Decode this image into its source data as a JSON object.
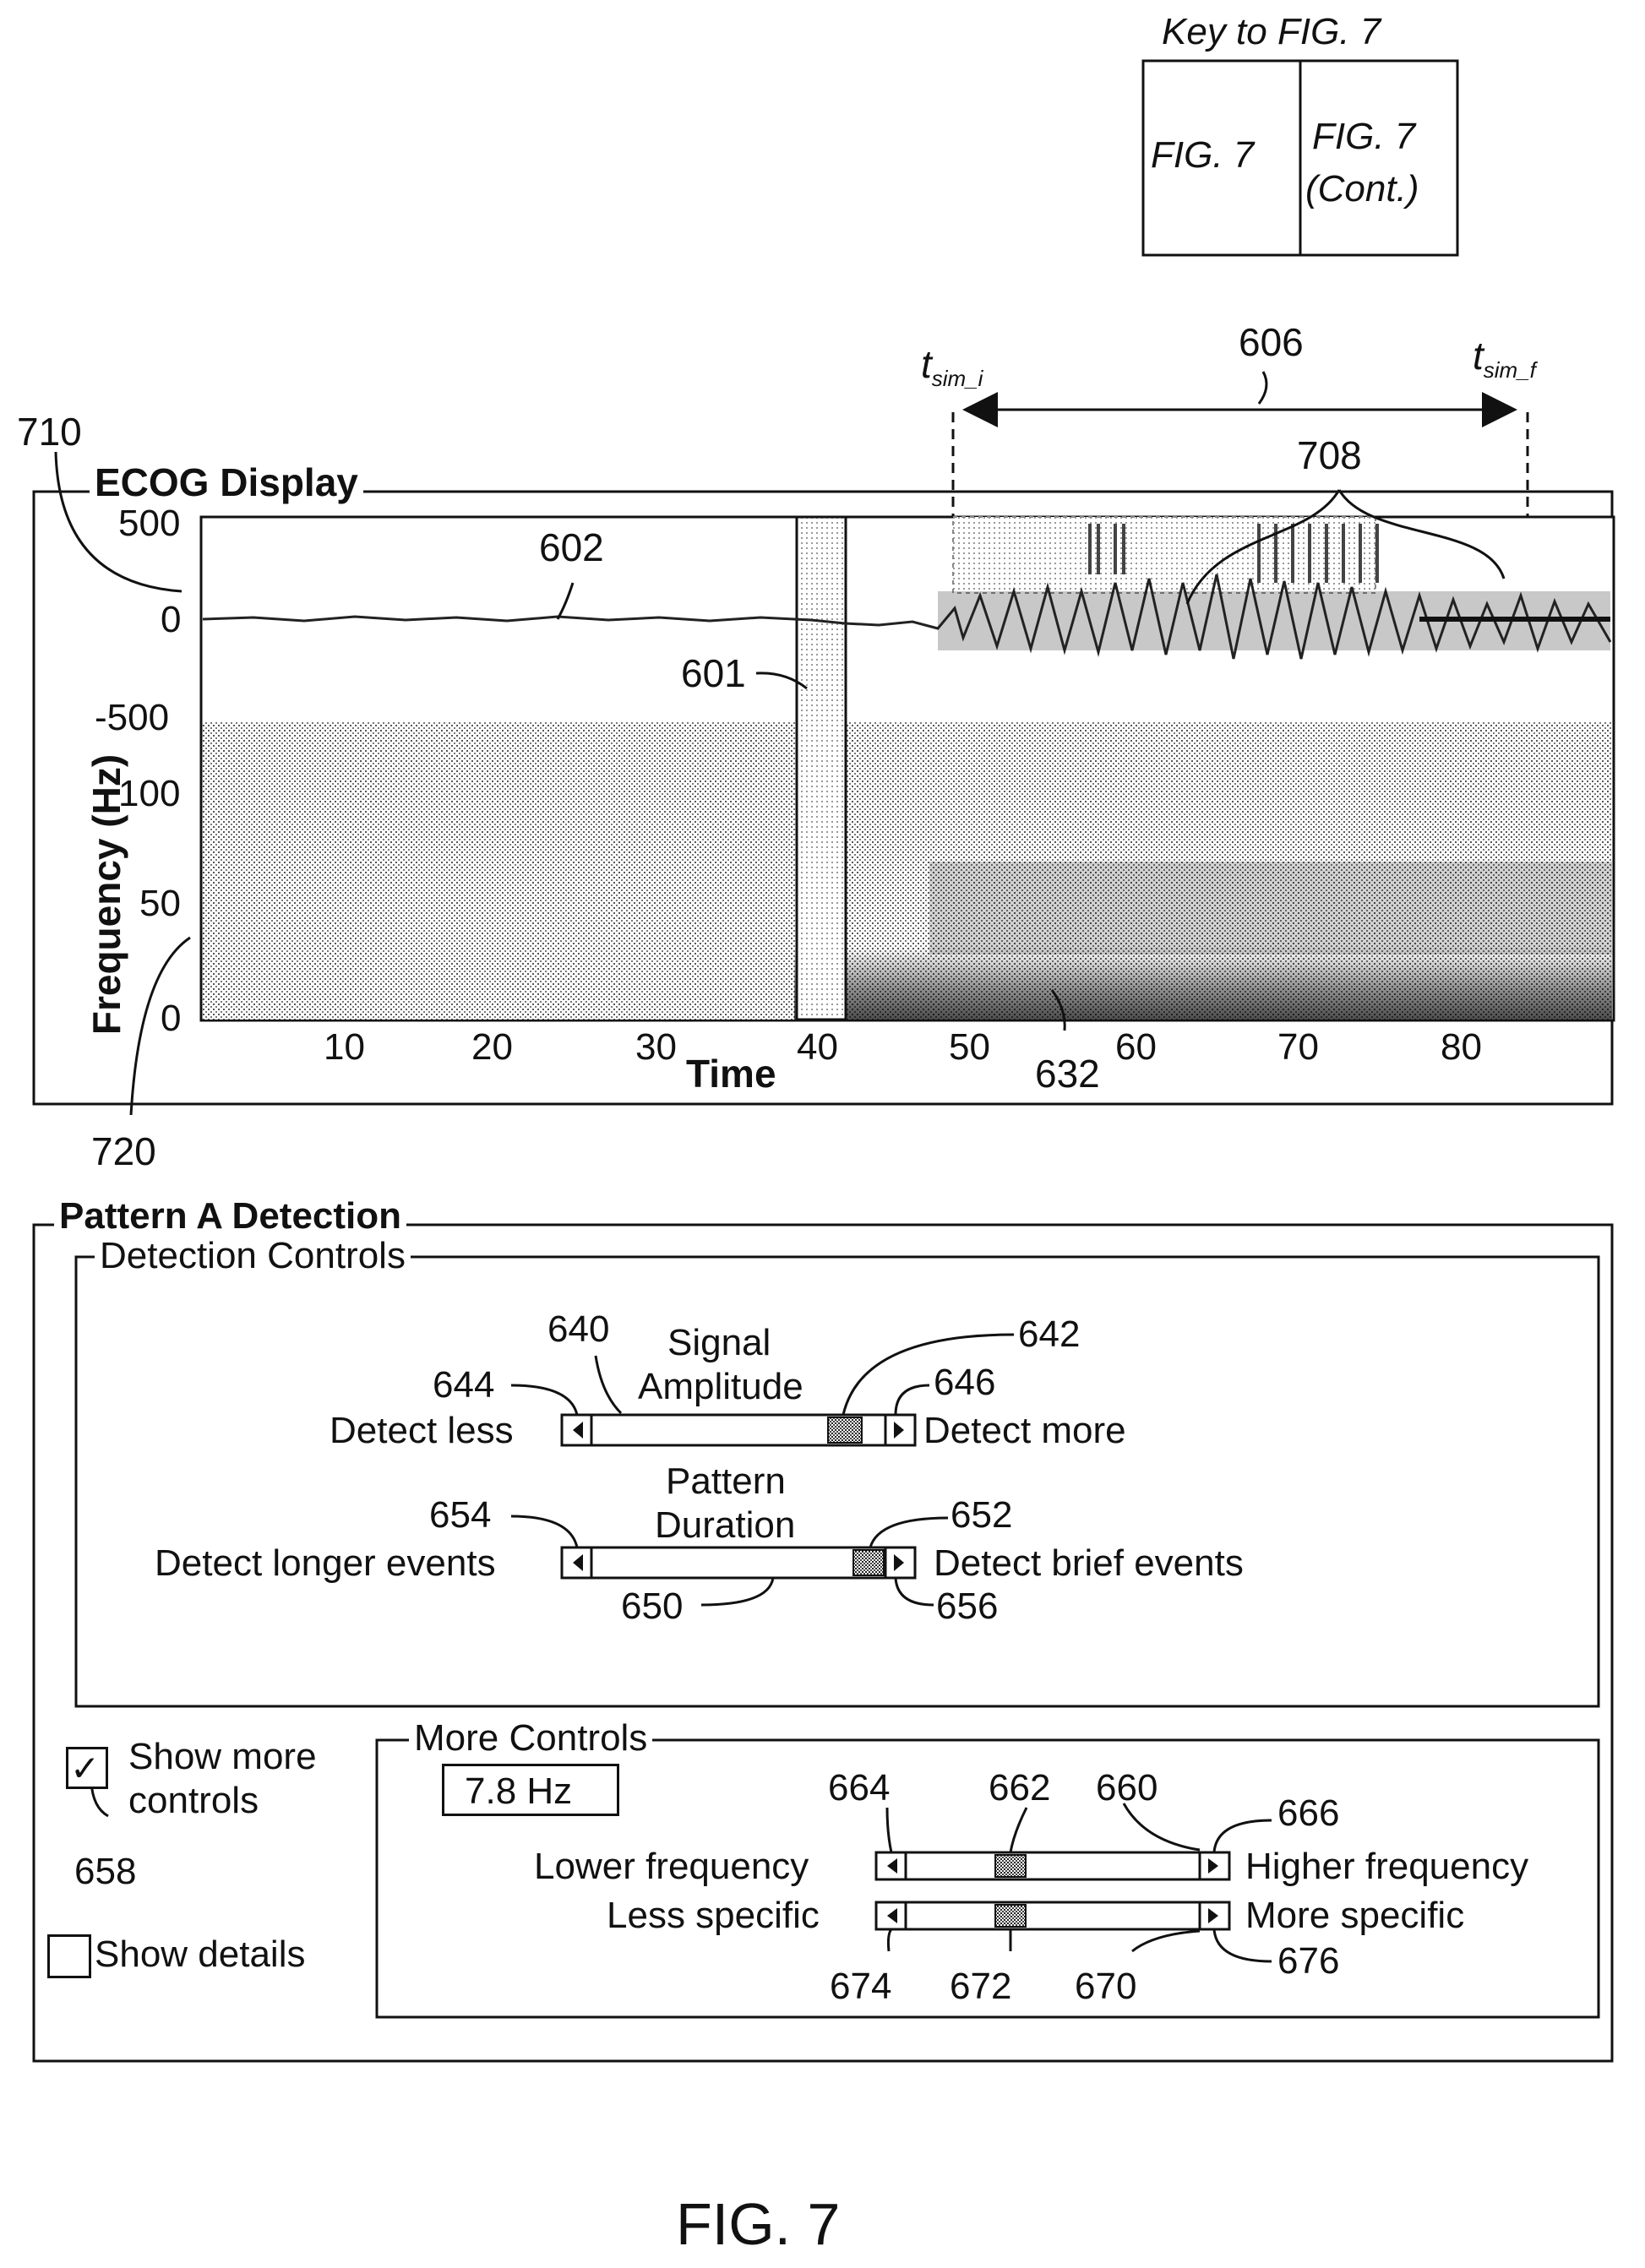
{
  "key": {
    "title": "Key to FIG. 7",
    "left_cell": "FIG. 7",
    "right_cell_line1": "FIG. 7",
    "right_cell_line2": "(Cont.)"
  },
  "annotations": {
    "t_sim_i": "t",
    "t_sim_i_sub": "sim_i",
    "t_sim_f": "t",
    "t_sim_f_sub": "sim_f",
    "ref_606": "606",
    "ref_710": "710",
    "ref_708": "708",
    "ref_602": "602",
    "ref_601": "601",
    "ref_632": "632",
    "ref_720": "720"
  },
  "ecog": {
    "title": "ECOG Display",
    "y_label": "Frequency (Hz)",
    "x_label": "Time",
    "amp_ticks": [
      "500",
      "0",
      "-500"
    ],
    "freq_ticks": [
      "100",
      "50",
      "0"
    ],
    "x_ticks": [
      "10",
      "20",
      "30",
      "40",
      "50",
      "60",
      "70",
      "80"
    ]
  },
  "chart_data": {
    "type": "heatmap",
    "title": "ECOG Display",
    "xlabel": "Time",
    "ylabel": "Frequency (Hz)",
    "x_ticks": [
      10,
      20,
      30,
      40,
      50,
      60,
      70,
      80
    ],
    "amplitude_ticks": [
      500,
      0,
      -500
    ],
    "frequency_ticks": [
      100,
      50,
      0
    ],
    "grid": false
  },
  "pattern": {
    "title": "Pattern A Detection",
    "controls_title": "Detection Controls",
    "signal_label_line1": "Signal",
    "signal_label_line2": "Amplitude",
    "detect_less": "Detect less",
    "detect_more": "Detect more",
    "duration_label_line1": "Pattern",
    "duration_label_line2": "Duration",
    "detect_longer": "Detect longer events",
    "detect_brief": "Detect brief events",
    "ref_640": "640",
    "ref_642": "642",
    "ref_644": "644",
    "ref_646": "646",
    "ref_654": "654",
    "ref_652": "652",
    "ref_650": "650",
    "ref_656": "656",
    "show_more_line1": "Show more",
    "show_more_line2": "controls",
    "show_more_checked": true,
    "ref_658": "658",
    "show_details": "Show details",
    "show_details_checked": false,
    "more_controls_title": "More Controls",
    "freq_value": "7.8 Hz",
    "lower_freq": "Lower frequency",
    "higher_freq": "Higher frequency",
    "less_specific": "Less specific",
    "more_specific": "More specific",
    "ref_664": "664",
    "ref_662": "662",
    "ref_660": "660",
    "ref_666": "666",
    "ref_674": "674",
    "ref_672": "672",
    "ref_670": "670",
    "ref_676": "676"
  },
  "figure_caption": "FIG. 7"
}
